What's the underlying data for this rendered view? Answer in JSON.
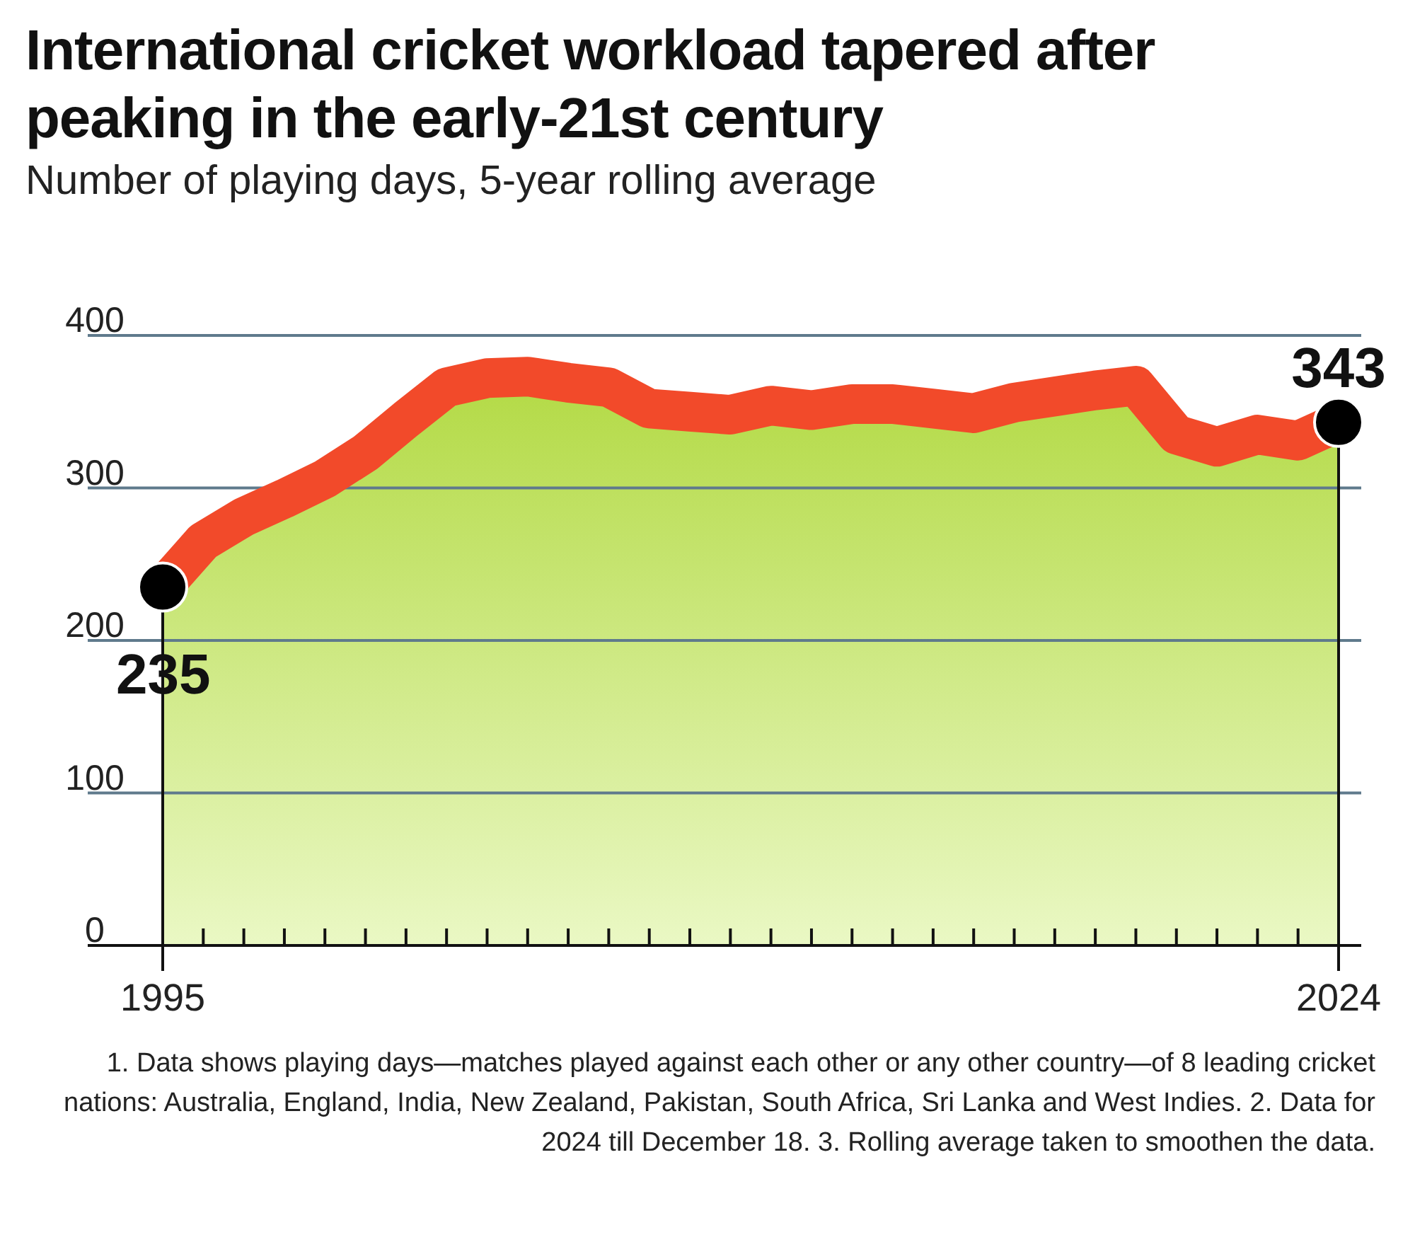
{
  "chart_data": {
    "type": "line",
    "title": "International cricket workload tapered after peaking in the early-21st century",
    "subtitle": "Number of playing days, 5-year rolling average",
    "x": [
      1995,
      1996,
      1997,
      1998,
      1999,
      2000,
      2001,
      2002,
      2003,
      2004,
      2005,
      2006,
      2007,
      2008,
      2009,
      2010,
      2011,
      2012,
      2013,
      2014,
      2015,
      2016,
      2017,
      2018,
      2019,
      2020,
      2021,
      2022,
      2023,
      2024
    ],
    "series": [
      {
        "color": "#f24a2a",
        "values": [
          235,
          265,
          281,
          293,
          306,
          323,
          345,
          366,
          372,
          373,
          369,
          366,
          352,
          350,
          348,
          354,
          351,
          355,
          355,
          352,
          349,
          356,
          360,
          364,
          367,
          335,
          327,
          335,
          331,
          343
        ],
        "value_labels": [
          "235",
          null,
          null,
          null,
          null,
          null,
          null,
          null,
          null,
          null,
          null,
          null,
          null,
          null,
          null,
          null,
          null,
          null,
          null,
          null,
          null,
          null,
          null,
          null,
          null,
          null,
          null,
          null,
          null,
          "343"
        ]
      }
    ],
    "xlim": [
      1995,
      2024
    ],
    "xticks": [
      1995,
      {
        "value": 1996,
        "label": null
      },
      {
        "value": 1997,
        "label": null
      },
      {
        "value": 1998,
        "label": null
      },
      {
        "value": 1999,
        "label": null
      },
      {
        "value": 2000,
        "label": null
      },
      {
        "value": 2001,
        "label": null
      },
      {
        "value": 2002,
        "label": null
      },
      {
        "value": 2003,
        "label": null
      },
      {
        "value": 2004,
        "label": null
      },
      {
        "value": 2005,
        "label": null
      },
      {
        "value": 2006,
        "label": null
      },
      {
        "value": 2007,
        "label": null
      },
      {
        "value": 2008,
        "label": null
      },
      {
        "value": 2009,
        "label": null
      },
      {
        "value": 2010,
        "label": null
      },
      {
        "value": 2011,
        "label": null
      },
      {
        "value": 2012,
        "label": null
      },
      {
        "value": 2013,
        "label": null
      },
      {
        "value": 2014,
        "label": null
      },
      {
        "value": 2015,
        "label": null
      },
      {
        "value": 2016,
        "label": null
      },
      {
        "value": 2017,
        "label": null
      },
      {
        "value": 2018,
        "label": null
      },
      {
        "value": 2019,
        "label": null
      },
      {
        "value": 2020,
        "label": null
      },
      {
        "value": 2021,
        "label": null
      },
      {
        "value": 2022,
        "label": null
      },
      {
        "value": 2023,
        "label": null
      },
      2024
    ],
    "ylim": [
      0,
      400
    ],
    "yticks": [
      0,
      100,
      200,
      300,
      400
    ],
    "grid": "y",
    "annotations": [
      "1. Data shows playing days—matches played against each other or any other country—of 8 leading cricket nations: Australia, England, India, New Zealand, Pakistan, South Africa, Sri Lanka and West Indies. 2. Data for 2024 till December 18. 3. Rolling average taken to smoothen the data."
    ]
  }
}
